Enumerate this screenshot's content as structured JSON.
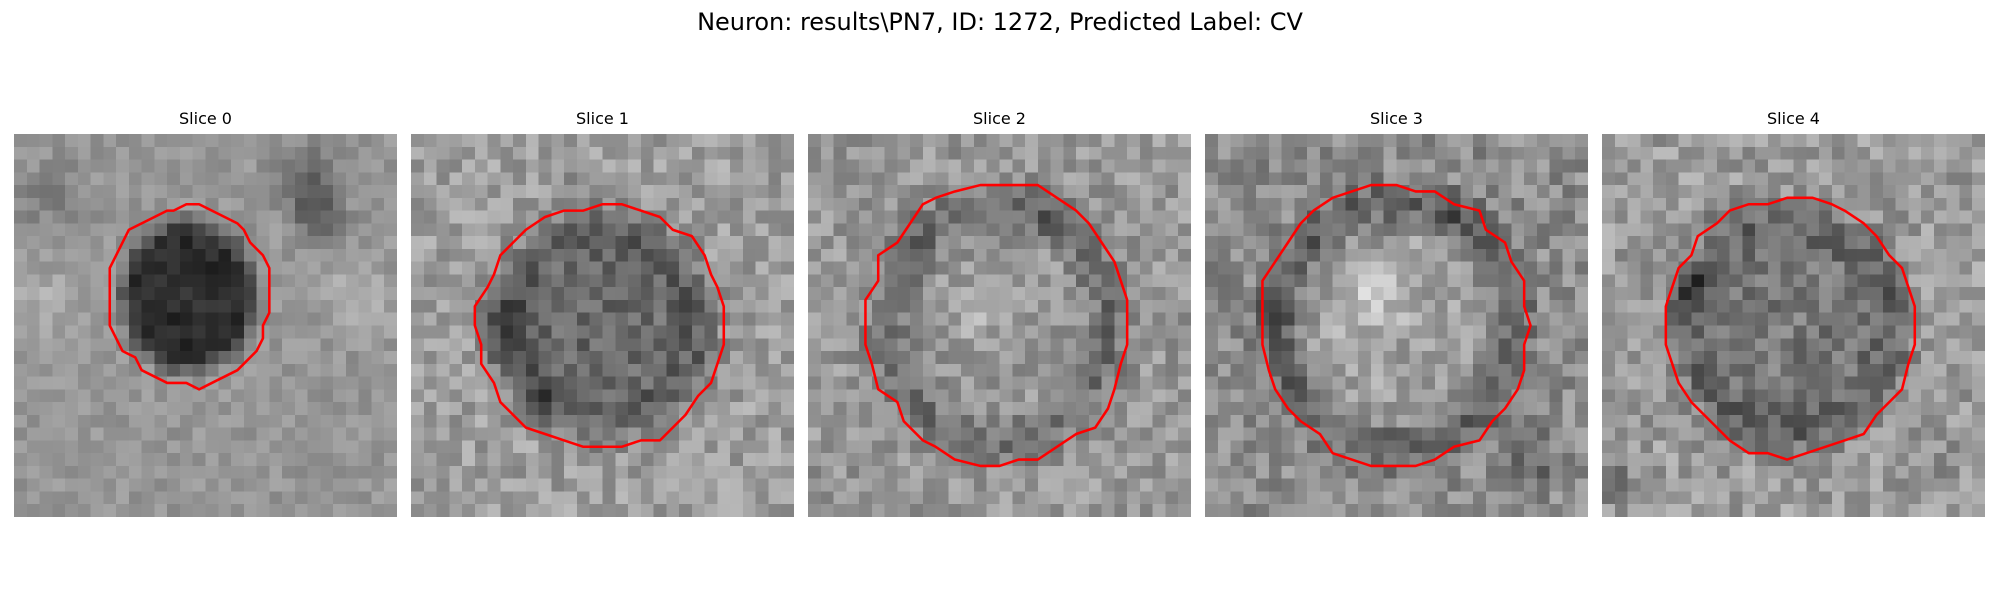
{
  "title": "Neuron: results\\PN7, ID: 1272, Predicted Label: CV",
  "colors": {
    "contour": "#ff0000",
    "background": "#ffffff"
  },
  "slices": [
    {
      "label": "Slice 0"
    },
    {
      "label": "Slice 1"
    },
    {
      "label": "Slice 2"
    },
    {
      "label": "Slice 3"
    },
    {
      "label": "Slice 4"
    }
  ]
}
